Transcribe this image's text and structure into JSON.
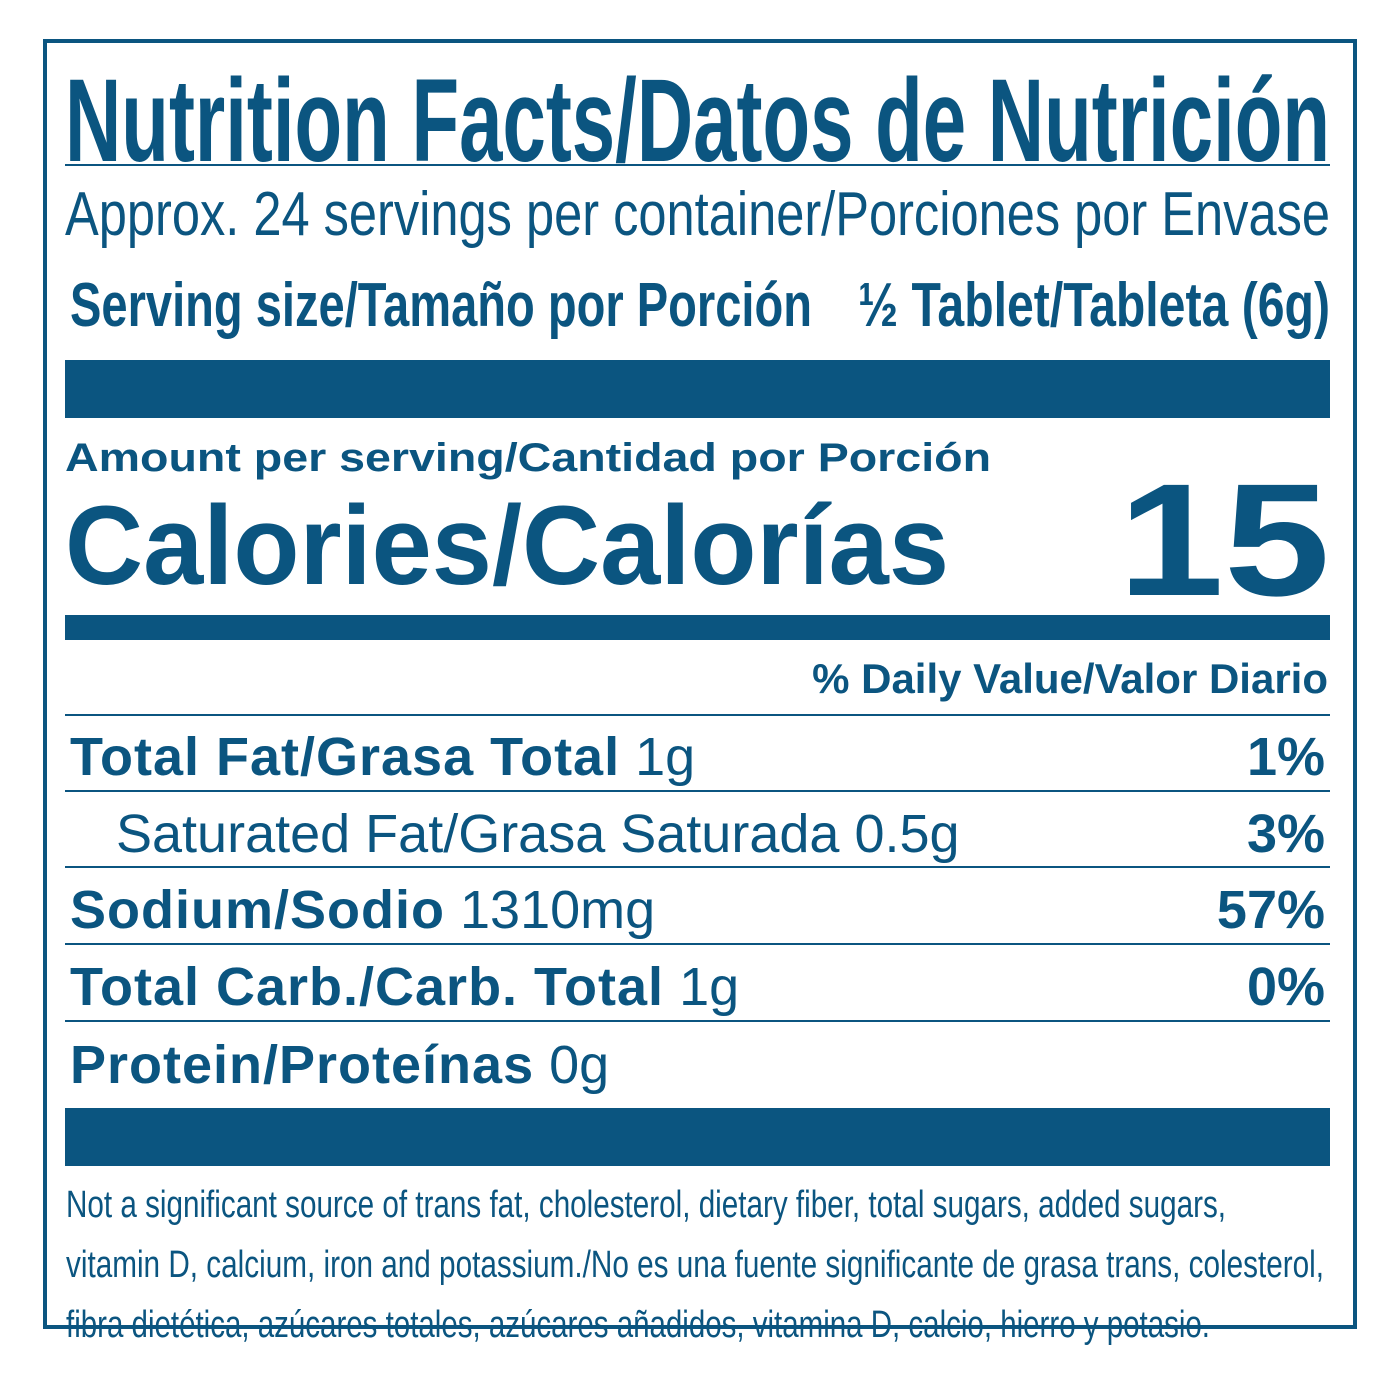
{
  "title": "Nutrition Facts/Datos de Nutrición",
  "servings": "Approx. 24 servings per container/Porciones por Envase",
  "serving_size": {
    "label": "Serving size/Tamaño por Porción",
    "value": "½ Tablet/Tableta (6g)"
  },
  "amount_per_serving": "Amount per serving/Cantidad por Porción",
  "calories": {
    "label": "Calories/Calorías",
    "value": "15"
  },
  "daily_value_header": "% Daily Value/Valor Diario",
  "nutrients": [
    {
      "label": "Total Fat/Grasa Total",
      "amount": "1g",
      "dv": "1%"
    },
    {
      "label": "Saturated Fat/Grasa Saturada",
      "amount": "0.5g",
      "dv": "3%"
    },
    {
      "label": "Sodium/Sodio",
      "amount": "1310mg",
      "dv": "57%"
    },
    {
      "label": "Total Carb./Carb. Total",
      "amount": "1g",
      "dv": "0%"
    },
    {
      "label": "Protein/Proteínas",
      "amount": "0g",
      "dv": ""
    }
  ],
  "footnote": [
    "Not a significant source of trans fat, cholesterol, dietary fiber, total sugars, added sugars,",
    "vitamin D, calcium, iron and potassium./No es una fuente significante de grasa trans, colesterol,",
    "fibra dietética, azúcares totales, azúcares añadidos, vitamina D, calcio, hierro y potasio."
  ],
  "colors": {
    "ink": "#0b5580",
    "background": "#ffffff"
  }
}
